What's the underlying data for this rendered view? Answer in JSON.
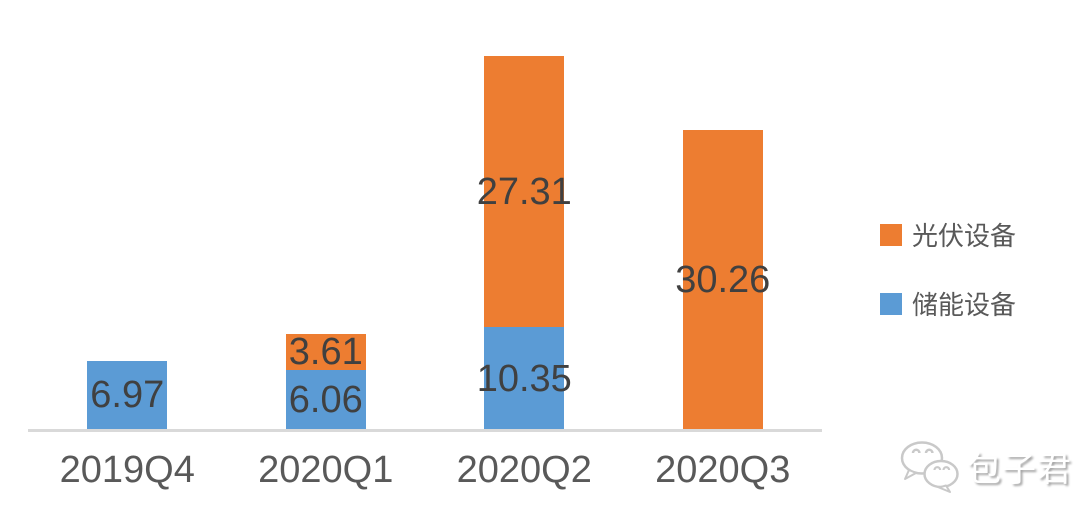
{
  "chart_data": {
    "type": "bar",
    "variant": "stacked-vertical",
    "title": "",
    "xlabel": "",
    "ylabel": "",
    "categories": [
      "2019Q4",
      "2020Q1",
      "2020Q2",
      "2020Q3"
    ],
    "series": [
      {
        "key": "pv-equipment",
        "name": "光伏设备",
        "color": "#ED7D31",
        "values": [
          null,
          3.61,
          27.31,
          30.26
        ]
      },
      {
        "key": "storage-equipment",
        "name": "储能设备",
        "color": "#5B9BD5",
        "values": [
          6.97,
          6.06,
          10.35,
          null
        ]
      }
    ],
    "stack_totals": [
      6.97,
      9.67,
      37.66,
      30.26
    ],
    "data_labels_shown": true,
    "y_axis_visible": false,
    "ylim": [
      0,
      38
    ],
    "grid": false,
    "legend_position": "right"
  },
  "legend": {
    "entries": [
      {
        "label": "光伏设备",
        "color": "#ED7D31"
      },
      {
        "label": "储能设备",
        "color": "#5B9BD5"
      }
    ]
  },
  "watermark": {
    "text": "包子君",
    "icon": "wechat-icon"
  },
  "colors": {
    "bar_orange": "#ED7D31",
    "bar_blue": "#5B9BD5",
    "data_label_text": "#404040",
    "axis_label_text": "#595959",
    "axis_line": "#D9D9D9",
    "watermark_gray": "#C9C9C9"
  }
}
